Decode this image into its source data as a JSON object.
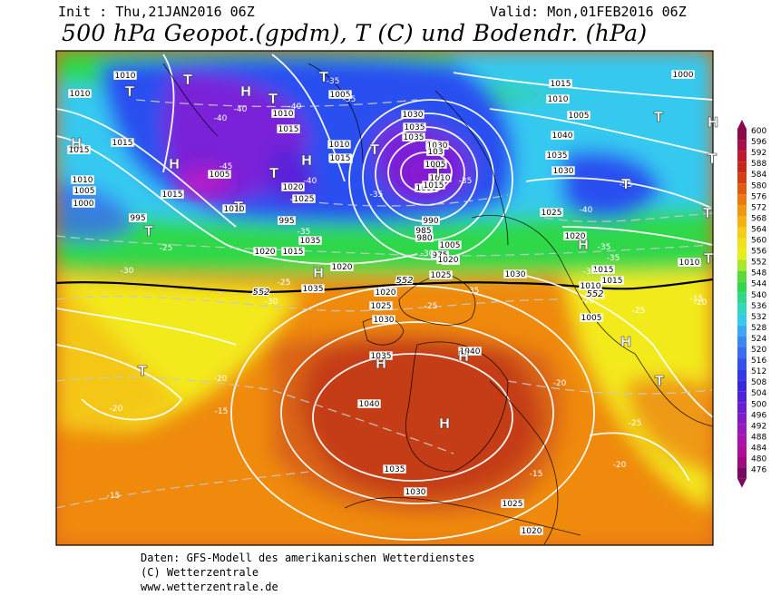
{
  "header": {
    "init": "Init : Thu,21JAN2016 06Z",
    "valid": "Valid: Mon,01FEB2016 06Z",
    "title": "500 hPa Geopot.(gpdm), T (C) und Bodendr. (hPa)"
  },
  "footer": {
    "line1": "Daten: GFS-Modell des amerikanischen Wetterdienstes",
    "line2": "(C) Wetterzentrale",
    "line3": "www.wetterzentrale.de"
  },
  "colors": {
    "purple": "#7a20d8",
    "blue": "#2a4ff0",
    "cyan": "#35c9f0",
    "green": "#2dd84a",
    "yellow": "#f3ea1a",
    "orange": "#f29a10",
    "darkorange": "#e06a12",
    "red": "#b82a18"
  },
  "legend": {
    "labels": [
      "600",
      "596",
      "592",
      "588",
      "584",
      "580",
      "576",
      "572",
      "568",
      "564",
      "560",
      "556",
      "552",
      "548",
      "544",
      "540",
      "536",
      "532",
      "528",
      "524",
      "520",
      "516",
      "512",
      "508",
      "504",
      "500",
      "496",
      "492",
      "488",
      "484",
      "480",
      "476"
    ],
    "colors": [
      "#8a0a4a",
      "#a8104a",
      "#c01a2a",
      "#c8281a",
      "#d43e14",
      "#e05a12",
      "#ea7a10",
      "#f2960e",
      "#f7b212",
      "#f7cc18",
      "#f2e21a",
      "#e6ee1c",
      "#a8e828",
      "#5ad836",
      "#30d84e",
      "#2ed88a",
      "#30d8c0",
      "#36c8ee",
      "#3aa8f2",
      "#3c88f2",
      "#3a6cf0",
      "#3450ec",
      "#3238e6",
      "#3a24e0",
      "#5020d8",
      "#6a1cd0",
      "#8418c8",
      "#9a16c0",
      "#aa12b0",
      "#b00e98",
      "#a00a7a",
      "#7a0860"
    ]
  },
  "isobar_labels": [
    {
      "t": "1010"
    },
    {
      "t": "1010"
    },
    {
      "t": "1015"
    },
    {
      "t": "1015"
    },
    {
      "t": "1010"
    },
    {
      "t": "1005"
    },
    {
      "t": "1000"
    },
    {
      "t": "995"
    },
    {
      "t": "1015"
    },
    {
      "t": "1005"
    },
    {
      "t": "1010"
    },
    {
      "t": "1015"
    },
    {
      "t": "1010"
    },
    {
      "t": "1005"
    },
    {
      "t": "1000"
    },
    {
      "t": "995"
    },
    {
      "t": "990"
    },
    {
      "t": "985"
    },
    {
      "t": "980"
    },
    {
      "t": "975"
    },
    {
      "t": "970"
    },
    {
      "t": "1005"
    },
    {
      "t": "1000"
    },
    {
      "t": "1010"
    },
    {
      "t": "1015"
    },
    {
      "t": "1020"
    },
    {
      "t": "1020"
    },
    {
      "t": "1025"
    },
    {
      "t": "1030"
    },
    {
      "t": "1035"
    },
    {
      "t": "1040"
    },
    {
      "t": "1040"
    },
    {
      "t": "1035"
    },
    {
      "t": "1030"
    },
    {
      "t": "1025"
    },
    {
      "t": "1020"
    },
    {
      "t": "1015"
    },
    {
      "t": "1010"
    },
    {
      "t": "1005"
    },
    {
      "t": "1040"
    },
    {
      "t": "1035"
    },
    {
      "t": "1030"
    },
    {
      "t": "1025"
    },
    {
      "t": "1020"
    },
    {
      "t": "1015"
    },
    {
      "t": "1010"
    },
    {
      "t": "1005"
    },
    {
      "t": "1000"
    },
    {
      "t": "1030"
    },
    {
      "t": "1035"
    },
    {
      "t": "1035"
    },
    {
      "t": "1030"
    },
    {
      "t": "103"
    },
    {
      "t": "1005"
    },
    {
      "t": "1010"
    },
    {
      "t": "1015"
    },
    {
      "t": "1020"
    },
    {
      "t": "1025"
    },
    {
      "t": "1035"
    },
    {
      "t": "1015"
    },
    {
      "t": "1020"
    },
    {
      "t": "1035"
    },
    {
      "t": "1030"
    },
    {
      "t": "1025"
    },
    {
      "t": "1020"
    },
    {
      "t": "1015"
    },
    {
      "t": "1010"
    }
  ],
  "temp_labels": [
    {
      "t": "-40"
    },
    {
      "t": "-35"
    },
    {
      "t": "-40"
    },
    {
      "t": "-40"
    },
    {
      "t": "-45"
    },
    {
      "t": "-35"
    },
    {
      "t": "-35"
    },
    {
      "t": "-40"
    },
    {
      "t": "-35"
    },
    {
      "t": "-35"
    },
    {
      "t": "-30"
    },
    {
      "t": "-25"
    },
    {
      "t": "-30"
    },
    {
      "t": "-25"
    },
    {
      "t": "-30"
    },
    {
      "t": "-25"
    },
    {
      "t": "-20"
    },
    {
      "t": "-20"
    },
    {
      "t": "-15"
    },
    {
      "t": "-20"
    },
    {
      "t": "-15"
    },
    {
      "t": "-20"
    },
    {
      "t": "-15"
    },
    {
      "t": "-20"
    },
    {
      "t": "-25"
    },
    {
      "t": "-20"
    },
    {
      "t": "-35"
    },
    {
      "t": "-35"
    },
    {
      "t": "-30"
    },
    {
      "t": "-25"
    },
    {
      "t": "-20"
    },
    {
      "t": "-15"
    },
    {
      "t": "-35"
    },
    {
      "t": "-40"
    },
    {
      "t": "-35"
    }
  ],
  "geopot_labels": [
    {
      "t": "552"
    },
    {
      "t": "552"
    },
    {
      "t": "552"
    }
  ],
  "pressure_centers": [
    {
      "t": "H"
    },
    {
      "t": "T"
    },
    {
      "t": "T"
    },
    {
      "t": "H"
    },
    {
      "t": "T"
    },
    {
      "t": "T"
    },
    {
      "t": "H"
    },
    {
      "t": "T"
    },
    {
      "t": "H"
    },
    {
      "t": "T"
    },
    {
      "t": "T"
    },
    {
      "t": "T"
    },
    {
      "t": "T"
    },
    {
      "t": "H"
    },
    {
      "t": "H"
    },
    {
      "t": "H"
    },
    {
      "t": "H"
    },
    {
      "t": "T"
    },
    {
      "t": "H"
    },
    {
      "t": "T"
    },
    {
      "t": "T"
    },
    {
      "t": "T"
    },
    {
      "t": "H"
    },
    {
      "t": "T"
    },
    {
      "t": "H"
    },
    {
      "t": "T"
    },
    {
      "t": "T"
    }
  ]
}
